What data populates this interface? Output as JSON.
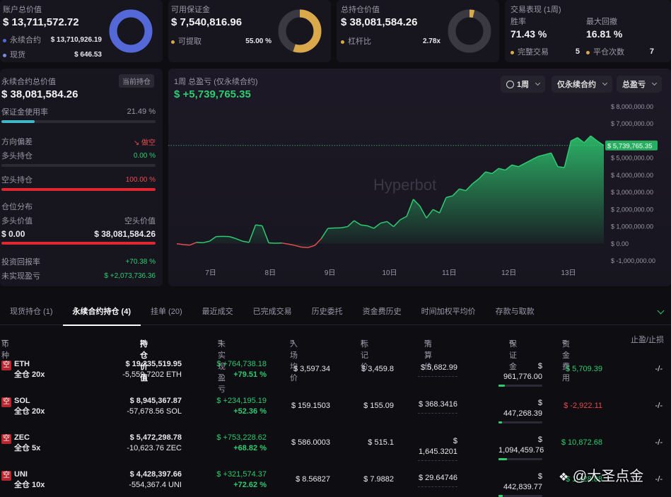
{
  "summary": {
    "total": {
      "label": "账户总价值",
      "value": "$ 13,711,572.72",
      "items": [
        {
          "label": "永续合约",
          "value": "$ 13,710,926.19"
        },
        {
          "label": "现货",
          "value": "$ 646.53"
        }
      ]
    },
    "margin": {
      "label": "可用保证金",
      "value": "$ 7,540,816.96",
      "item_label": "可提取",
      "item_value": "55.00 %"
    },
    "position": {
      "label": "总持仓价值",
      "value": "$ 38,081,584.26",
      "item_label": "杠杆比",
      "item_value": "2.78x"
    },
    "perf": {
      "label": "交易表现 (1周)",
      "winrate_label": "胜率",
      "winrate": "71.43 %",
      "drawdown_label": "最大回撤",
      "drawdown": "16.81 %",
      "done_label": "完整交易",
      "done": "5",
      "closes_label": "平仓次数",
      "closes": "7"
    }
  },
  "colors": {
    "blue": "#5468d8",
    "gold": "#d9a94c",
    "green": "#2ecc71",
    "red": "#e74c4c"
  },
  "left": {
    "title": "永续合约总价值",
    "badge": "当前持仓",
    "value": "$ 38,081,584.26",
    "usage_label": "保证金使用率",
    "usage": "21.49 %",
    "usage_pct": 21.49,
    "bias_label": "方向偏差",
    "bias_value": "做空",
    "long_label": "多头持仓",
    "long_value": "0.00 %",
    "long_pct": 0,
    "short_label": "空头持仓",
    "short_value": "100.00 %",
    "short_pct": 100,
    "dist_label": "仓位分布",
    "long_val_label": "多头价值",
    "short_val_label": "空头价值",
    "long_val": "$ 0.00",
    "short_val": "$ 38,081,584.26",
    "roi_label": "投资回报率",
    "roi": "+70.38 %",
    "upnl_label": "未实现盈亏",
    "upnl": "$ +2,073,736.36"
  },
  "chart_header": {
    "title": "1周 总盈亏 (仅永续合约)",
    "value": "$ +5,739,765.35",
    "btn_period": "1周",
    "btn_scope": "仅永续合约",
    "btn_metric": "总盈亏",
    "watermark": "Hyperbot"
  },
  "chart_data": {
    "type": "area",
    "x_ticks": [
      "7日",
      "8日",
      "9日",
      "10日",
      "11日",
      "12日",
      "13日"
    ],
    "y_ticks": [
      "$ 8,000,000.00",
      "$ 7,000,000.00",
      "$ 6,000,000.00",
      "$ 5,000,000.00",
      "$ 4,000,000.00",
      "$ 3,000,000.00",
      "$ 2,000,000.00",
      "$ 1,000,000.00",
      "$ 0.00",
      "$ -1,000,000.00"
    ],
    "ylim": [
      -1000000,
      8000000
    ],
    "current_label": "$ 5,739,765.35",
    "current": 5739765.35,
    "values": [
      0,
      -50000,
      -80000,
      80000,
      60000,
      150000,
      420000,
      430000,
      420000,
      300000,
      150000,
      80000,
      1100000,
      1050000,
      50000,
      30000,
      40000,
      -20000,
      -100000,
      -200000,
      -220000,
      -100000,
      300000,
      900000,
      920000,
      930000,
      1000000,
      1350000,
      1100000,
      1050000,
      900000,
      1200000,
      1300000,
      1000000,
      1400000,
      1600000,
      2600000,
      2200000,
      1500000,
      2000000,
      1800000,
      2700000,
      2800000,
      3200000,
      3100000,
      3500000,
      3800000,
      4200000,
      4100000,
      4400000,
      4300000,
      4600000,
      4500000,
      4700000,
      4900000,
      5100000,
      5200000,
      5300000,
      4500000,
      4450000,
      6000000,
      6200000,
      5900000,
      6300000,
      6000000,
      5740000
    ]
  },
  "tabs": [
    "现货持仓 (1)",
    "永续合约持仓 (4)",
    "挂单 (20)",
    "最近成交",
    "已完成交易",
    "历史委托",
    "资金费历史",
    "时间加权平均价",
    "存款与取款"
  ],
  "columns": {
    "coin": "币种",
    "value": "持仓价值",
    "upnl": "未实现盈亏",
    "entry": "入场均价",
    "mark": "标记价",
    "liq": "清算价",
    "margin": "保证金",
    "funding": "资金费用",
    "tpsl": "止盈/止损"
  },
  "rows": [
    {
      "side": "空",
      "coin": "ETH",
      "lev": "全仓 20x",
      "value": "$ 19,235,519.95",
      "size": "-5,559.7202 ETH",
      "pnl": "$ +764,738.18",
      "pnl_pct": "+79.51 %",
      "entry": "$ 3,597.34",
      "mark": "$ 3,459.8",
      "liq": "$ 5,682.99",
      "margin": "$ 961,776.00",
      "margin_ratio": 0.15,
      "funding": "$ 5,709.39",
      "funding_sign": "pos",
      "tpsl": "-/-"
    },
    {
      "side": "空",
      "coin": "SOL",
      "lev": "全仓 20x",
      "value": "$ 8,945,367.87",
      "size": "-57,678.56 SOL",
      "pnl": "$ +234,195.19",
      "pnl_pct": "+52.36 %",
      "entry": "$ 159.1503",
      "mark": "$ 155.09",
      "liq": "$ 368.3416",
      "margin": "$ 447,268.39",
      "margin_ratio": 0.08,
      "funding": "$ -2,922.11",
      "funding_sign": "neg",
      "tpsl": "-/-"
    },
    {
      "side": "空",
      "coin": "ZEC",
      "lev": "全仓 5x",
      "value": "$ 5,472,298.78",
      "size": "-10,623.76 ZEC",
      "pnl": "$ +753,228.62",
      "pnl_pct": "+68.82 %",
      "entry": "$ 586.0003",
      "mark": "$ 515.1",
      "liq": "$ 1,645.3201",
      "margin": "$ 1,094,459.76",
      "margin_ratio": 0.2,
      "funding": "$ 10,872.68",
      "funding_sign": "pos",
      "tpsl": "-/-"
    },
    {
      "side": "空",
      "coin": "UNI",
      "lev": "全仓 10x",
      "value": "$ 4,428,397.66",
      "size": "-554,367.4 UNI",
      "pnl": "$ +321,574.37",
      "pnl_pct": "+72.62 %",
      "entry": "$ 8.56827",
      "mark": "$ 7.9882",
      "liq": "$ 29.64746",
      "margin": "$ 442,839.77",
      "margin_ratio": 0.1,
      "funding": "$ 1,428.88",
      "funding_sign": "pos",
      "tpsl": "-/-"
    }
  ],
  "watermark_text": "@大圣点金"
}
